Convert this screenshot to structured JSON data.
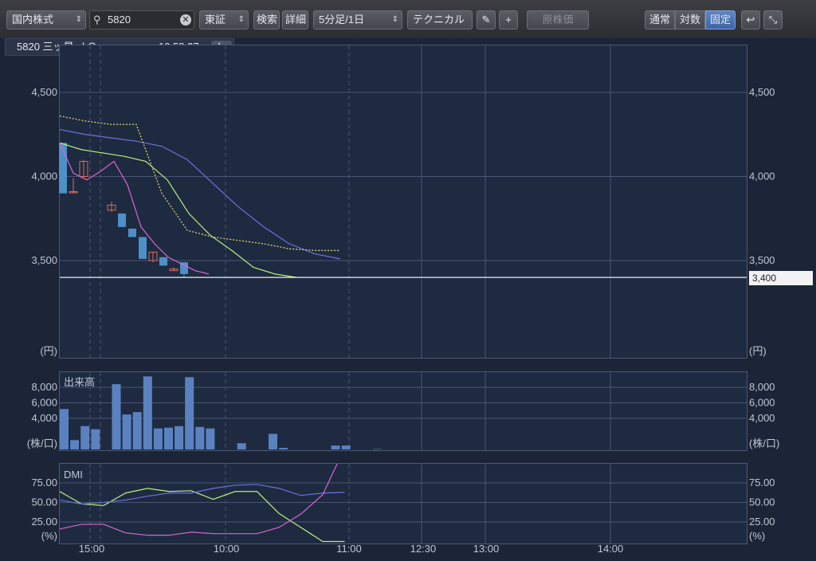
{
  "toolbar": {
    "market_select": "国内株式",
    "search_value": "5820",
    "exchange_select": "東証",
    "search_button": "検索",
    "detail_button": "詳細",
    "interval_select": "5分足/1日",
    "technical_button": "テクニカル",
    "base_price_button": "原株価",
    "scale_normal": "通常",
    "scale_log": "対数",
    "scale_fixed": "固定",
    "icons": [
      "search-icon",
      "clear-icon",
      "pencil-icon",
      "plus-icon",
      "undo-icon",
      "shrink-icon"
    ]
  },
  "info": {
    "symbol": "5820 三ッ星 ＪＱ",
    "time": "10:58:27",
    "info_icon": "info-icon"
  },
  "colors": {
    "up_candle": "#e06a5a",
    "down_candle": "#4f8fc7",
    "ma_short": "#d966d0",
    "ma_mid": "#b8f07a",
    "ma_long": "#6b72e0",
    "dotted_line": "#e8e07a",
    "price_line": "#f0f0f0"
  },
  "chart_data": [
    {
      "type": "candlestick",
      "title": "",
      "unit": "(円)",
      "y_ticks": [
        "4,500",
        "4,000",
        "3,500"
      ],
      "ylim": [
        3000,
        4680
      ],
      "x_ticks": [
        "15:00",
        "10:00",
        "11:00",
        "12:30",
        "13:00",
        "14:00"
      ],
      "current_price_label": "3,400",
      "current_price": 3400,
      "candles": [
        {
          "open": 4200,
          "close": 3900,
          "high": 4200,
          "low": 3900,
          "dir": "down"
        },
        {
          "open": 3910,
          "close": 3910,
          "high": 3990,
          "low": 3900,
          "dir": "up"
        },
        {
          "open": 4000,
          "close": 4090,
          "high": 4100,
          "low": 3990,
          "dir": "up"
        },
        {
          "open": 3830,
          "close": 3800,
          "high": 3850,
          "low": 3790,
          "dir": "up"
        },
        {
          "open": 3780,
          "close": 3700,
          "high": 3780,
          "low": 3700,
          "dir": "down"
        },
        {
          "open": 3690,
          "close": 3640,
          "high": 3690,
          "low": 3640,
          "dir": "down"
        },
        {
          "open": 3640,
          "close": 3510,
          "high": 3640,
          "low": 3510,
          "dir": "down"
        },
        {
          "open": 3500,
          "close": 3550,
          "high": 3550,
          "low": 3490,
          "dir": "up"
        },
        {
          "open": 3520,
          "close": 3470,
          "high": 3520,
          "low": 3470,
          "dir": "down"
        },
        {
          "open": 3450,
          "close": 3440,
          "high": 3460,
          "low": 3440,
          "dir": "up"
        },
        {
          "open": 3490,
          "close": 3420,
          "high": 3490,
          "low": 3400,
          "dir": "down"
        }
      ],
      "ma_short": [
        4200,
        4020,
        3980,
        4030,
        4090,
        3950,
        3700,
        3600,
        3520,
        3480,
        3440,
        3420
      ],
      "ma_mid": [
        4200,
        4160,
        4140,
        4120,
        4090,
        3980,
        3780,
        3650,
        3560,
        3460,
        3420,
        3400
      ],
      "ma_long": [
        4280,
        4250,
        4230,
        4210,
        4180,
        4100,
        3960,
        3820,
        3700,
        3600,
        3540,
        3510
      ],
      "dotted": [
        4360,
        4330,
        4310,
        4310,
        3900,
        3680,
        3640,
        3620,
        3600,
        3570,
        3560,
        3560
      ]
    },
    {
      "type": "bar",
      "title": "出来高",
      "unit": "(株/口)",
      "y_ticks": [
        "8,000",
        "6,000",
        "4,000"
      ],
      "ylim": [
        0,
        10000
      ],
      "values": [
        5200,
        1200,
        3000,
        2600,
        0,
        8400,
        4500,
        4800,
        9400,
        2700,
        2800,
        3000,
        9300,
        2900,
        2700,
        0,
        0,
        800,
        0,
        0,
        2000,
        200,
        0,
        0,
        0,
        0,
        500,
        500,
        0,
        0,
        50
      ]
    },
    {
      "type": "line",
      "title": "DMI",
      "unit": "(%)",
      "y_ticks": [
        "75.00",
        "50.00",
        "25.00"
      ],
      "ylim": [
        0,
        100
      ],
      "series": [
        {
          "color": "#b8f07a",
          "values": [
            64,
            48,
            46,
            62,
            68,
            64,
            65,
            54,
            64,
            64,
            36,
            18,
            0,
            0
          ]
        },
        {
          "color": "#6b72e0",
          "values": [
            53,
            48,
            50,
            53,
            58,
            62,
            62,
            68,
            72,
            73,
            68,
            59,
            62,
            63
          ]
        },
        {
          "color": "#d966d0",
          "values": [
            16,
            22,
            22,
            11,
            8,
            8,
            12,
            10,
            10,
            10,
            18,
            35,
            60,
            120
          ]
        }
      ]
    }
  ]
}
